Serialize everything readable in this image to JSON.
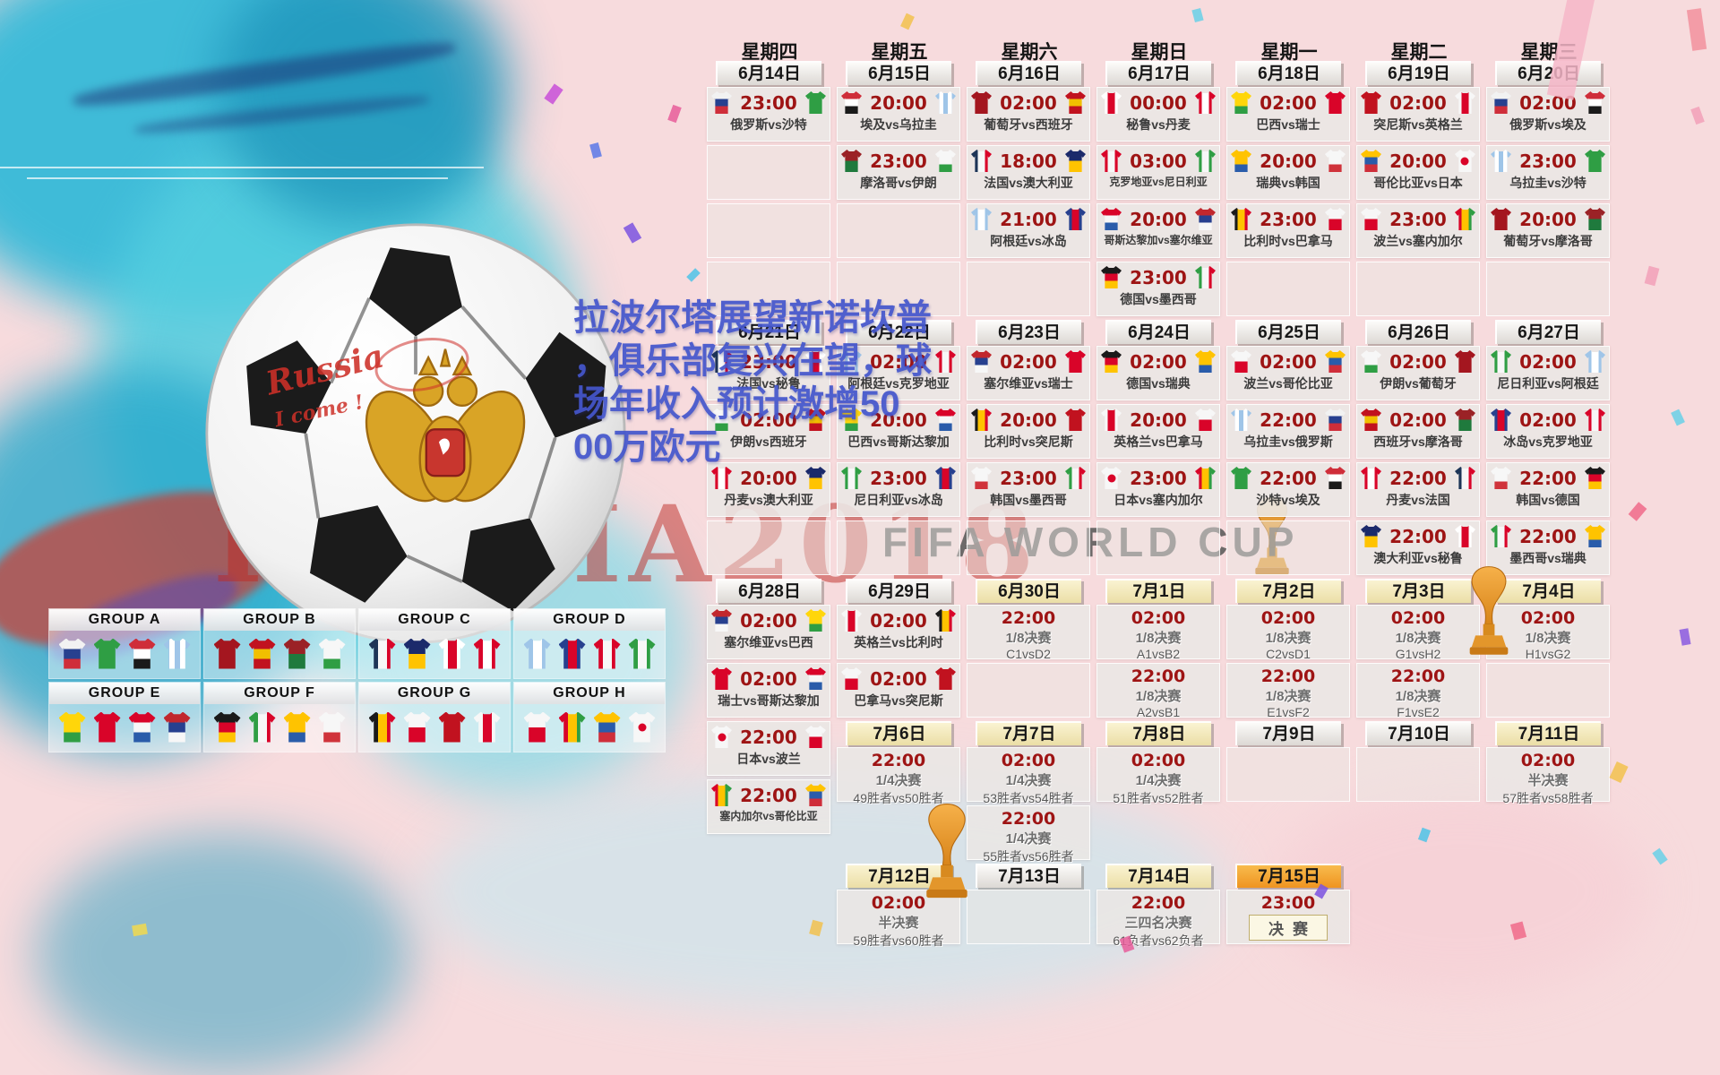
{
  "watermarks": {
    "fifa": "FIFA WORLD CUP",
    "russia": "RUSSIA2018"
  },
  "overlay": {
    "lines": [
      "拉波尔塔展望新诺坎普",
      "，俱乐部复兴在望，球",
      "场年收入预计激增50",
      "00万欧元"
    ]
  },
  "ball": {
    "note1": "Russia",
    "note2": "I come !"
  },
  "colors": {
    "time_red": "#9e1414",
    "knockout_yellow": "#ebdea6",
    "final_orange": "#ef9420",
    "headline_blue": "#4456cc"
  },
  "teams": {
    "俄罗斯": {
      "dir": "h",
      "colors": [
        "#f2f2f2",
        "#27408f",
        "#cf2e3a"
      ]
    },
    "沙特": {
      "dir": "h",
      "colors": [
        "#2f9e44"
      ]
    },
    "埃及": {
      "dir": "h",
      "colors": [
        "#cf2e3a",
        "#ffffff",
        "#1a1a1a"
      ]
    },
    "乌拉圭": {
      "dir": "v",
      "colors": [
        "#9fc5e8",
        "#ffffff",
        "#9fc5e8",
        "#ffffff",
        "#9fc5e8"
      ]
    },
    "葡萄牙": {
      "dir": "h",
      "colors": [
        "#a4161f"
      ]
    },
    "西班牙": {
      "dir": "h",
      "colors": [
        "#c1121f",
        "#f1bf00",
        "#c1121f"
      ]
    },
    "摩洛哥": {
      "dir": "h",
      "colors": [
        "#9b2226",
        "#1f7a3d"
      ]
    },
    "伊朗": {
      "dir": "h",
      "colors": [
        "#f7f7f7",
        "#f7f7f7",
        "#2f9e44"
      ]
    },
    "法国": {
      "dir": "v",
      "colors": [
        "#1d3557",
        "#f7f7f7",
        "#d90429"
      ]
    },
    "澳大利亚": {
      "dir": "h",
      "colors": [
        "#1b2a6b",
        "#ffc300"
      ]
    },
    "秘鲁": {
      "dir": "v",
      "colors": [
        "#ffffff",
        "#d90429",
        "#ffffff"
      ]
    },
    "丹麦": {
      "dir": "v",
      "colors": [
        "#d90429",
        "#ffffff",
        "#d90429"
      ]
    },
    "阿根廷": {
      "dir": "v",
      "colors": [
        "#9fc5e8",
        "#ffffff",
        "#9fc5e8"
      ]
    },
    "冰岛": {
      "dir": "v",
      "colors": [
        "#27408f",
        "#d90429",
        "#27408f"
      ]
    },
    "克罗地亚": {
      "dir": "v",
      "colors": [
        "#d90429",
        "#f7f7f7",
        "#d90429"
      ]
    },
    "尼日利亚": {
      "dir": "v",
      "colors": [
        "#2f9e44",
        "#f7f7f7",
        "#2f9e44"
      ]
    },
    "巴西": {
      "dir": "h",
      "colors": [
        "#ffd60a",
        "#ffd60a",
        "#2f9e44"
      ]
    },
    "瑞士": {
      "dir": "h",
      "colors": [
        "#d90429"
      ]
    },
    "哥斯达黎加": {
      "dir": "h",
      "colors": [
        "#d90429",
        "#f7f7f7",
        "#2a5caa"
      ]
    },
    "塞尔维亚": {
      "dir": "h",
      "colors": [
        "#c1272d",
        "#27408f",
        "#f7f7f7"
      ]
    },
    "德国": {
      "dir": "h",
      "colors": [
        "#1a1a1a",
        "#d90429",
        "#ffc300"
      ]
    },
    "墨西哥": {
      "dir": "v",
      "colors": [
        "#2f9e44",
        "#f7f7f7",
        "#d90429"
      ]
    },
    "瑞典": {
      "dir": "h",
      "colors": [
        "#ffc300",
        "#ffc300",
        "#2a5caa"
      ]
    },
    "韩国": {
      "dir": "h",
      "colors": [
        "#f7f7f7",
        "#f7f7f7",
        "#d0333b"
      ]
    },
    "比利时": {
      "dir": "v",
      "colors": [
        "#1a1a1a",
        "#ffc300",
        "#d90429"
      ]
    },
    "巴拿马": {
      "dir": "h",
      "colors": [
        "#f7f7f7",
        "#d90429"
      ]
    },
    "突尼斯": {
      "dir": "h",
      "colors": [
        "#c1121f"
      ]
    },
    "英格兰": {
      "dir": "v",
      "colors": [
        "#f7f7f7",
        "#d90429",
        "#f7f7f7"
      ]
    },
    "波兰": {
      "dir": "h",
      "colors": [
        "#f7f7f7",
        "#d90429"
      ]
    },
    "塞内加尔": {
      "dir": "v",
      "colors": [
        "#d90429",
        "#ffc300",
        "#2f9e44"
      ]
    },
    "哥伦比亚": {
      "dir": "h",
      "colors": [
        "#ffc300",
        "#2a5caa",
        "#cf2e3a"
      ]
    },
    "日本": {
      "dir": "h",
      "colors": [
        "#f7f7f7"
      ],
      "dot": "#d90429"
    }
  },
  "calendar": {
    "columns": [
      {
        "weekday": "星期四",
        "blocks": [
          {
            "t": "date",
            "label": "6月14日",
            "v": "gray"
          },
          {
            "t": "m",
            "time": "23:00",
            "home": "俄罗斯",
            "away": "沙特"
          },
          {
            "t": "e"
          },
          {
            "t": "e"
          },
          {
            "t": "e"
          },
          {
            "t": "date",
            "label": "6月21日",
            "v": "gray"
          },
          {
            "t": "m",
            "time": "23:00",
            "home": "法国",
            "away": "秘鲁"
          },
          {
            "t": "m",
            "time": "02:00",
            "home": "伊朗",
            "away": "西班牙"
          },
          {
            "t": "m",
            "time": "20:00",
            "home": "丹麦",
            "away": "澳大利亚"
          },
          {
            "t": "e"
          },
          {
            "t": "date",
            "label": "6月28日",
            "v": "gray"
          },
          {
            "t": "m",
            "time": "02:00",
            "home": "塞尔维亚",
            "away": "巴西"
          },
          {
            "t": "m",
            "time": "02:00",
            "home": "瑞士",
            "away": "哥斯达黎加"
          },
          {
            "t": "m",
            "time": "22:00",
            "home": "日本",
            "away": "波兰"
          },
          {
            "t": "m",
            "time": "22:00",
            "home": "塞内加尔",
            "away": "哥伦比亚"
          }
        ]
      },
      {
        "weekday": "星期五",
        "blocks": [
          {
            "t": "date",
            "label": "6月15日",
            "v": "gray"
          },
          {
            "t": "m",
            "time": "20:00",
            "home": "埃及",
            "away": "乌拉圭"
          },
          {
            "t": "m",
            "time": "23:00",
            "home": "摩洛哥",
            "away": "伊朗"
          },
          {
            "t": "e"
          },
          {
            "t": "e"
          },
          {
            "t": "date",
            "label": "6月22日",
            "v": "gray"
          },
          {
            "t": "m",
            "time": "02:00",
            "home": "阿根廷",
            "away": "克罗地亚"
          },
          {
            "t": "m",
            "time": "20:00",
            "home": "巴西",
            "away": "哥斯达黎加"
          },
          {
            "t": "m",
            "time": "23:00",
            "home": "尼日利亚",
            "away": "冰岛"
          },
          {
            "t": "e"
          },
          {
            "t": "date",
            "label": "6月29日",
            "v": "gray"
          },
          {
            "t": "m",
            "time": "02:00",
            "home": "英格兰",
            "away": "比利时"
          },
          {
            "t": "m",
            "time": "02:00",
            "home": "巴拿马",
            "away": "突尼斯"
          },
          {
            "t": "date",
            "label": "7月6日",
            "v": "yellow"
          },
          {
            "t": "k",
            "time": "22:00",
            "stage": "1/4决赛",
            "pair": "49胜者vs50胜者"
          },
          {
            "t": "b"
          },
          {
            "t": "date",
            "label": "7月12日",
            "v": "yellow"
          },
          {
            "t": "k",
            "time": "02:00",
            "stage": "半决赛",
            "pair": "59胜者vs60胜者"
          }
        ]
      },
      {
        "weekday": "星期六",
        "blocks": [
          {
            "t": "date",
            "label": "6月16日",
            "v": "gray"
          },
          {
            "t": "m",
            "time": "02:00",
            "home": "葡萄牙",
            "away": "西班牙"
          },
          {
            "t": "m",
            "time": "18:00",
            "home": "法国",
            "away": "澳大利亚"
          },
          {
            "t": "m",
            "time": "21:00",
            "home": "阿根廷",
            "away": "冰岛"
          },
          {
            "t": "e"
          },
          {
            "t": "date",
            "label": "6月23日",
            "v": "gray"
          },
          {
            "t": "m",
            "time": "02:00",
            "home": "塞尔维亚",
            "away": "瑞士"
          },
          {
            "t": "m",
            "time": "20:00",
            "home": "比利时",
            "away": "突尼斯"
          },
          {
            "t": "m",
            "time": "23:00",
            "home": "韩国",
            "away": "墨西哥"
          },
          {
            "t": "e"
          },
          {
            "t": "date",
            "label": "6月30日",
            "v": "yellow"
          },
          {
            "t": "k",
            "time": "22:00",
            "stage": "1/8决赛",
            "pair": "C1vsD2"
          },
          {
            "t": "e"
          },
          {
            "t": "date",
            "label": "7月7日",
            "v": "yellow"
          },
          {
            "t": "k",
            "time": "02:00",
            "stage": "1/4决赛",
            "pair": "53胜者vs54胜者"
          },
          {
            "t": "k",
            "time": "22:00",
            "stage": "1/4决赛",
            "pair": "55胜者vs56胜者"
          },
          {
            "t": "date",
            "label": "7月13日",
            "v": "gray"
          },
          {
            "t": "e"
          }
        ]
      },
      {
        "weekday": "星期日",
        "blocks": [
          {
            "t": "date",
            "label": "6月17日",
            "v": "gray"
          },
          {
            "t": "m",
            "time": "00:00",
            "home": "秘鲁",
            "away": "丹麦"
          },
          {
            "t": "m",
            "time": "03:00",
            "home": "克罗地亚",
            "away": "尼日利亚"
          },
          {
            "t": "m",
            "time": "20:00",
            "home": "哥斯达黎加",
            "away": "塞尔维亚"
          },
          {
            "t": "m",
            "time": "23:00",
            "home": "德国",
            "away": "墨西哥"
          },
          {
            "t": "date",
            "label": "6月24日",
            "v": "gray"
          },
          {
            "t": "m",
            "time": "02:00",
            "home": "德国",
            "away": "瑞典"
          },
          {
            "t": "m",
            "time": "20:00",
            "home": "英格兰",
            "away": "巴拿马"
          },
          {
            "t": "m",
            "time": "23:00",
            "home": "日本",
            "away": "塞内加尔"
          },
          {
            "t": "e"
          },
          {
            "t": "date",
            "label": "7月1日",
            "v": "yellow"
          },
          {
            "t": "k",
            "time": "02:00",
            "stage": "1/8决赛",
            "pair": "A1vsB2"
          },
          {
            "t": "k",
            "time": "22:00",
            "stage": "1/8决赛",
            "pair": "A2vsB1"
          },
          {
            "t": "date",
            "label": "7月8日",
            "v": "yellow"
          },
          {
            "t": "k",
            "time": "02:00",
            "stage": "1/4决赛",
            "pair": "51胜者vs52胜者"
          },
          {
            "t": "b"
          },
          {
            "t": "date",
            "label": "7月14日",
            "v": "yellow"
          },
          {
            "t": "k",
            "time": "22:00",
            "stage": "三四名决赛",
            "pair": "61负者vs62负者"
          }
        ]
      },
      {
        "weekday": "星期一",
        "blocks": [
          {
            "t": "date",
            "label": "6月18日",
            "v": "gray"
          },
          {
            "t": "m",
            "time": "02:00",
            "home": "巴西",
            "away": "瑞士"
          },
          {
            "t": "m",
            "time": "20:00",
            "home": "瑞典",
            "away": "韩国"
          },
          {
            "t": "m",
            "time": "23:00",
            "home": "比利时",
            "away": "巴拿马"
          },
          {
            "t": "e"
          },
          {
            "t": "date",
            "label": "6月25日",
            "v": "gray"
          },
          {
            "t": "m",
            "time": "02:00",
            "home": "波兰",
            "away": "哥伦比亚"
          },
          {
            "t": "m",
            "time": "22:00",
            "home": "乌拉圭",
            "away": "俄罗斯"
          },
          {
            "t": "m",
            "time": "22:00",
            "home": "沙特",
            "away": "埃及"
          },
          {
            "t": "e"
          },
          {
            "t": "date",
            "label": "7月2日",
            "v": "yellow"
          },
          {
            "t": "k",
            "time": "02:00",
            "stage": "1/8决赛",
            "pair": "C2vsD1"
          },
          {
            "t": "k",
            "time": "22:00",
            "stage": "1/8决赛",
            "pair": "E1vsF2"
          },
          {
            "t": "date",
            "label": "7月9日",
            "v": "gray"
          },
          {
            "t": "e"
          },
          {
            "t": "b"
          },
          {
            "t": "date",
            "label": "7月15日",
            "v": "orange"
          },
          {
            "t": "f",
            "time": "23:00",
            "label": "决赛"
          }
        ]
      },
      {
        "weekday": "星期二",
        "blocks": [
          {
            "t": "date",
            "label": "6月19日",
            "v": "gray"
          },
          {
            "t": "m",
            "time": "02:00",
            "home": "突尼斯",
            "away": "英格兰"
          },
          {
            "t": "m",
            "time": "20:00",
            "home": "哥伦比亚",
            "away": "日本"
          },
          {
            "t": "m",
            "time": "23:00",
            "home": "波兰",
            "away": "塞内加尔"
          },
          {
            "t": "e"
          },
          {
            "t": "date",
            "label": "6月26日",
            "v": "gray"
          },
          {
            "t": "m",
            "time": "02:00",
            "home": "伊朗",
            "away": "葡萄牙"
          },
          {
            "t": "m",
            "time": "02:00",
            "home": "西班牙",
            "away": "摩洛哥"
          },
          {
            "t": "m",
            "time": "22:00",
            "home": "丹麦",
            "away": "法国"
          },
          {
            "t": "m",
            "time": "22:00",
            "home": "澳大利亚",
            "away": "秘鲁"
          },
          {
            "t": "date",
            "label": "7月3日",
            "v": "yellow"
          },
          {
            "t": "k",
            "time": "02:00",
            "stage": "1/8决赛",
            "pair": "G1vsH2"
          },
          {
            "t": "k",
            "time": "22:00",
            "stage": "1/8决赛",
            "pair": "F1vsE2"
          },
          {
            "t": "date",
            "label": "7月10日",
            "v": "gray"
          },
          {
            "t": "e"
          }
        ]
      },
      {
        "weekday": "星期三",
        "blocks": [
          {
            "t": "date",
            "label": "6月20日",
            "v": "gray"
          },
          {
            "t": "m",
            "time": "02:00",
            "home": "俄罗斯",
            "away": "埃及"
          },
          {
            "t": "m",
            "time": "23:00",
            "home": "乌拉圭",
            "away": "沙特"
          },
          {
            "t": "m",
            "time": "20:00",
            "home": "葡萄牙",
            "away": "摩洛哥"
          },
          {
            "t": "e"
          },
          {
            "t": "date",
            "label": "6月27日",
            "v": "gray"
          },
          {
            "t": "m",
            "time": "02:00",
            "home": "尼日利亚",
            "away": "阿根廷"
          },
          {
            "t": "m",
            "time": "02:00",
            "home": "冰岛",
            "away": "克罗地亚"
          },
          {
            "t": "m",
            "time": "22:00",
            "home": "韩国",
            "away": "德国"
          },
          {
            "t": "m",
            "time": "22:00",
            "home": "墨西哥",
            "away": "瑞典"
          },
          {
            "t": "date",
            "label": "7月4日",
            "v": "yellow"
          },
          {
            "t": "k",
            "time": "02:00",
            "stage": "1/8决赛",
            "pair": "H1vsG2"
          },
          {
            "t": "e"
          },
          {
            "t": "date",
            "label": "7月11日",
            "v": "yellow"
          },
          {
            "t": "k",
            "time": "02:00",
            "stage": "半决赛",
            "pair": "57胜者vs58胜者"
          }
        ]
      }
    ]
  },
  "groups": [
    {
      "label": "GROUP A",
      "teams": [
        "俄罗斯",
        "沙特",
        "埃及",
        "乌拉圭"
      ]
    },
    {
      "label": "GROUP B",
      "teams": [
        "葡萄牙",
        "西班牙",
        "摩洛哥",
        "伊朗"
      ]
    },
    {
      "label": "GROUP C",
      "teams": [
        "法国",
        "澳大利亚",
        "秘鲁",
        "丹麦"
      ]
    },
    {
      "label": "GROUP D",
      "teams": [
        "阿根廷",
        "冰岛",
        "克罗地亚",
        "尼日利亚"
      ]
    },
    {
      "label": "GROUP E",
      "teams": [
        "巴西",
        "瑞士",
        "哥斯达黎加",
        "塞尔维亚"
      ]
    },
    {
      "label": "GROUP F",
      "teams": [
        "德国",
        "墨西哥",
        "瑞典",
        "韩国"
      ]
    },
    {
      "label": "GROUP G",
      "teams": [
        "比利时",
        "巴拿马",
        "突尼斯",
        "英格兰"
      ]
    },
    {
      "label": "GROUP H",
      "teams": [
        "波兰",
        "塞内加尔",
        "哥伦比亚",
        "日本"
      ]
    }
  ]
}
